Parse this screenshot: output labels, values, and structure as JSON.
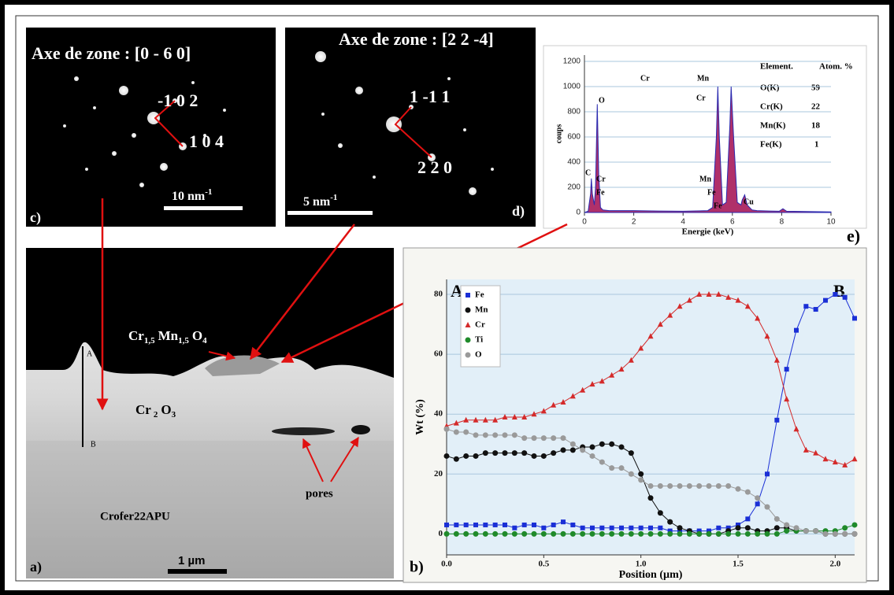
{
  "panels": {
    "c": {
      "label": "c)",
      "title": "Axe de zone : [0 - 6 0]",
      "spots": [
        "-1 0 2",
        "1 0 4"
      ],
      "scale": [
        "10 nm",
        "-1"
      ]
    },
    "d": {
      "label": "d)",
      "title": "Axe de zone : [2 2 -4]",
      "spots": [
        "1 -1 1",
        "2 2 0"
      ],
      "scale": [
        "5 nm",
        "-1"
      ]
    },
    "e": {
      "label": "e)",
      "table": {
        "header": [
          "Element.",
          "Atom. %"
        ],
        "rows": [
          [
            "O(K)",
            59
          ],
          [
            "Cr(K)",
            22
          ],
          [
            "Mn(K)",
            18
          ],
          [
            "Fe(K)",
            1
          ]
        ]
      }
    },
    "a": {
      "label": "a)",
      "spinel": [
        "Cr",
        "1,5",
        "Mn",
        "1,5",
        "O",
        "4"
      ],
      "chromia": [
        "Cr",
        "2",
        "O",
        "3"
      ],
      "profile_start": "A",
      "profile_end": "B",
      "pores": "pores",
      "substrate": "Crofer22APU",
      "scale": "1 µm"
    },
    "b": {
      "label": "b)",
      "start": "A",
      "end": "B"
    }
  },
  "chart_data": [
    {
      "type": "area",
      "xlabel": "Energie (keV)",
      "ylabel": "coups",
      "x": [
        0,
        0.15,
        0.25,
        0.28,
        0.32,
        0.4,
        0.45,
        0.52,
        0.58,
        0.65,
        0.75,
        1,
        2,
        3,
        4,
        5,
        5.2,
        5.35,
        5.41,
        5.47,
        5.6,
        5.75,
        5.9,
        5.95,
        6.05,
        6.2,
        6.35,
        6.4,
        6.5,
        6.6,
        6.8,
        7,
        7.5,
        7.9,
        8.05,
        8.2,
        9,
        10
      ],
      "series": [
        {
          "color": "#b0306a",
          "values": [
            0,
            10,
            150,
            270,
            150,
            60,
            200,
            860,
            300,
            40,
            20,
            15,
            15,
            12,
            10,
            15,
            40,
            600,
            1000,
            600,
            60,
            80,
            700,
            1000,
            600,
            80,
            60,
            100,
            140,
            60,
            20,
            15,
            12,
            10,
            30,
            10,
            8,
            5
          ]
        }
      ],
      "xlim": [
        0,
        10
      ],
      "ylim": [
        0,
        1250
      ],
      "xticks": [
        0,
        2,
        4,
        6,
        8,
        10
      ],
      "yticks": [
        0,
        200,
        400,
        600,
        800,
        1000,
        1200
      ],
      "grid": true,
      "annotations": [
        "O",
        "C",
        "Cr",
        "Fe",
        "Cr",
        "Mn",
        "Cr",
        "Mn",
        "Fe",
        "Fe",
        "Cu"
      ]
    },
    {
      "type": "line",
      "xlabel": "Position (µm)",
      "ylabel": "Wt (%)",
      "x": [
        0,
        0.05,
        0.1,
        0.15,
        0.2,
        0.25,
        0.3,
        0.35,
        0.4,
        0.45,
        0.5,
        0.55,
        0.6,
        0.65,
        0.7,
        0.75,
        0.8,
        0.85,
        0.9,
        0.95,
        1,
        1.05,
        1.1,
        1.15,
        1.2,
        1.25,
        1.3,
        1.35,
        1.4,
        1.45,
        1.5,
        1.55,
        1.6,
        1.65,
        1.7,
        1.75,
        1.8,
        1.85,
        1.9,
        1.95,
        2,
        2.05,
        2.1
      ],
      "series": [
        {
          "name": "Fe",
          "color": "#1a2fd6",
          "marker": "square",
          "values": [
            3,
            3,
            3,
            3,
            3,
            3,
            3,
            2,
            3,
            3,
            2,
            3,
            4,
            3,
            2,
            2,
            2,
            2,
            2,
            2,
            2,
            2,
            2,
            1,
            1,
            1,
            1,
            1,
            2,
            2,
            3,
            5,
            10,
            20,
            38,
            55,
            68,
            76,
            75,
            78,
            80,
            79,
            72
          ]
        },
        {
          "name": "Mn",
          "color": "#111111",
          "marker": "circle",
          "values": [
            26,
            25,
            26,
            26,
            27,
            27,
            27,
            27,
            27,
            26,
            26,
            27,
            28,
            28,
            29,
            29,
            30,
            30,
            29,
            27,
            20,
            12,
            7,
            4,
            2,
            1,
            0,
            0,
            0,
            1,
            2,
            2,
            1,
            1,
            2,
            2,
            1,
            1,
            1,
            0,
            0,
            0,
            0
          ]
        },
        {
          "name": "Cr",
          "color": "#d42a2a",
          "marker": "triangle",
          "values": [
            36,
            37,
            38,
            38,
            38,
            38,
            39,
            39,
            39,
            40,
            41,
            43,
            44,
            46,
            48,
            50,
            51,
            53,
            55,
            58,
            62,
            66,
            70,
            73,
            76,
            78,
            80,
            80,
            80,
            79,
            78,
            76,
            72,
            66,
            58,
            45,
            35,
            28,
            27,
            25,
            24,
            23,
            25
          ]
        },
        {
          "name": "Ti",
          "color": "#1f8a2a",
          "marker": "circle",
          "values": [
            0,
            0,
            0,
            0,
            0,
            0,
            0,
            0,
            0,
            0,
            0,
            0,
            0,
            0,
            0,
            0,
            0,
            0,
            0,
            0,
            0,
            0,
            0,
            0,
            0,
            0,
            0,
            0,
            0,
            0,
            0,
            0,
            0,
            0,
            0,
            1,
            1,
            1,
            1,
            1,
            1,
            2,
            3
          ]
        },
        {
          "name": "O",
          "color": "#9a9a9a",
          "marker": "circle",
          "values": [
            35,
            34,
            34,
            33,
            33,
            33,
            33,
            33,
            32,
            32,
            32,
            32,
            32,
            30,
            28,
            26,
            24,
            22,
            22,
            20,
            18,
            16,
            16,
            16,
            16,
            16,
            16,
            16,
            16,
            16,
            15,
            14,
            12,
            9,
            5,
            3,
            2,
            1,
            1,
            0,
            0,
            0,
            0
          ]
        }
      ],
      "xlim": [
        0,
        2.1
      ],
      "ylim": [
        -7,
        85
      ],
      "xticks": [
        {
          "value": 0,
          "label": "0.0"
        },
        0.5,
        {
          "value": 1,
          "label": "1.0"
        },
        1.5,
        {
          "value": 2,
          "label": "2.0"
        }
      ],
      "yticks": [
        0,
        20,
        40,
        60,
        80
      ],
      "grid": true,
      "legend": "top-left"
    }
  ]
}
